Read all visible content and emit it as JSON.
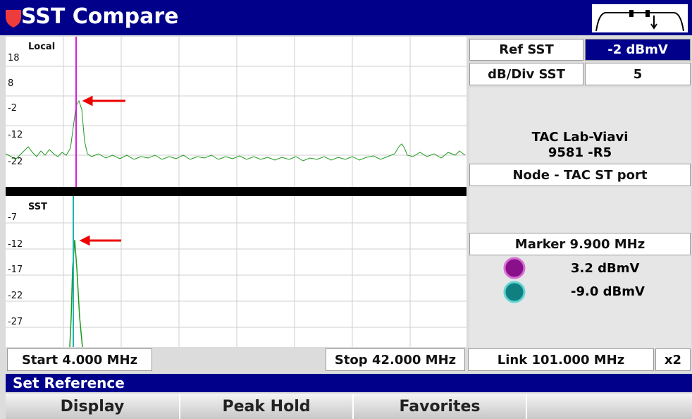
{
  "title": "SST Compare",
  "plots": [
    {
      "label": "Local",
      "yticks": [
        "18",
        "8",
        "-2",
        "-12",
        "-22"
      ]
    },
    {
      "label": "SST",
      "yticks": [
        "-7",
        "-12",
        "-17",
        "-22",
        "-27"
      ]
    }
  ],
  "settings": {
    "ref_label": "Ref SST",
    "ref_value": "-2 dBmV",
    "div_label": "dB/Div SST",
    "div_value": "5"
  },
  "device": {
    "name": "TAC Lab-Viavi",
    "id": "9581 -R5",
    "port": "Node - TAC ST port"
  },
  "marker": {
    "label": "Marker 9.900 MHz",
    "readings": [
      "3.2 dBmV",
      "-9.0 dBmV"
    ]
  },
  "frequency": {
    "start": "Start 4.000 MHz",
    "stop": "Stop 42.000 MHz",
    "link": "Link 101.000 MHz",
    "zoom": "x2"
  },
  "status": "Set Reference",
  "softkeys": [
    "Display",
    "Peak Hold",
    "Favorites"
  ]
}
